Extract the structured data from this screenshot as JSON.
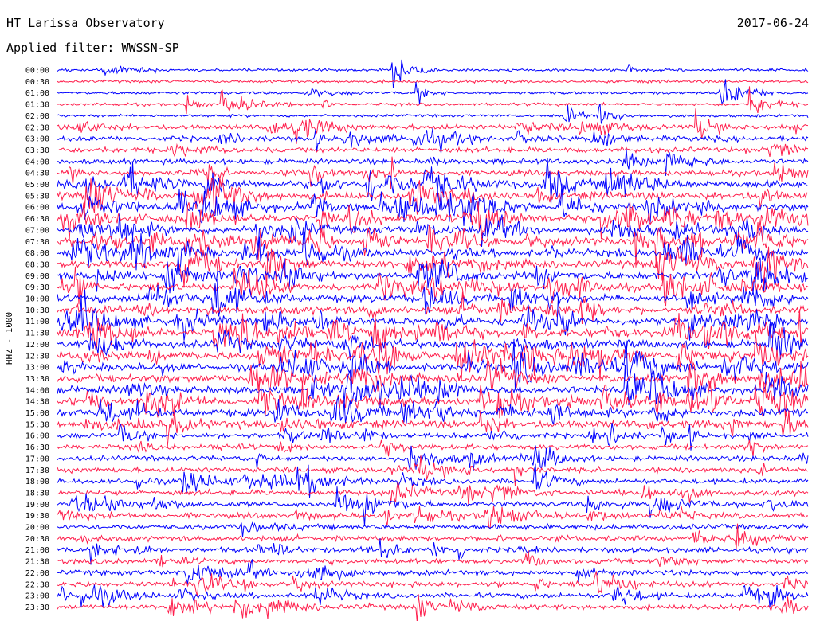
{
  "header": {
    "title": "HT Larissa Observatory",
    "date": "2017-06-24",
    "filter": "Applied filter: WWSSN-SP"
  },
  "chart_data": {
    "type": "line",
    "title": "HT Larissa Observatory",
    "date": "2017-06-24",
    "filter": "WWSSN-SP",
    "ylabel": "HHZ - 1000",
    "xlabel": "",
    "colors": {
      "odd_traces": "#0000ff",
      "even_traces": "#ff1e4c"
    },
    "series": [
      {
        "name": "00:00",
        "color": "#0000ff",
        "activity": "low"
      },
      {
        "name": "00:30",
        "color": "#ff1e4c",
        "activity": "low"
      },
      {
        "name": "01:00",
        "color": "#0000ff",
        "activity": "low"
      },
      {
        "name": "01:30",
        "color": "#ff1e4c",
        "activity": "low"
      },
      {
        "name": "02:00",
        "color": "#0000ff",
        "activity": "low"
      },
      {
        "name": "02:30",
        "color": "#ff1e4c",
        "activity": "medium"
      },
      {
        "name": "03:00",
        "color": "#0000ff",
        "activity": "medium"
      },
      {
        "name": "03:30",
        "color": "#ff1e4c",
        "activity": "medium"
      },
      {
        "name": "04:00",
        "color": "#0000ff",
        "activity": "medium"
      },
      {
        "name": "04:30",
        "color": "#ff1e4c",
        "activity": "medium"
      },
      {
        "name": "05:00",
        "color": "#0000ff",
        "activity": "high"
      },
      {
        "name": "05:30",
        "color": "#ff1e4c",
        "activity": "high"
      },
      {
        "name": "06:00",
        "color": "#0000ff",
        "activity": "high"
      },
      {
        "name": "06:30",
        "color": "#ff1e4c",
        "activity": "high"
      },
      {
        "name": "07:00",
        "color": "#0000ff",
        "activity": "high"
      },
      {
        "name": "07:30",
        "color": "#ff1e4c",
        "activity": "high"
      },
      {
        "name": "08:00",
        "color": "#0000ff",
        "activity": "high"
      },
      {
        "name": "08:30",
        "color": "#ff1e4c",
        "activity": "high"
      },
      {
        "name": "09:00",
        "color": "#0000ff",
        "activity": "high"
      },
      {
        "name": "09:30",
        "color": "#ff1e4c",
        "activity": "high"
      },
      {
        "name": "10:00",
        "color": "#0000ff",
        "activity": "high"
      },
      {
        "name": "10:30",
        "color": "#ff1e4c",
        "activity": "high"
      },
      {
        "name": "11:00",
        "color": "#0000ff",
        "activity": "high"
      },
      {
        "name": "11:30",
        "color": "#ff1e4c",
        "activity": "high"
      },
      {
        "name": "12:00",
        "color": "#0000ff",
        "activity": "high"
      },
      {
        "name": "12:30",
        "color": "#ff1e4c",
        "activity": "high"
      },
      {
        "name": "13:00",
        "color": "#0000ff",
        "activity": "high"
      },
      {
        "name": "13:30",
        "color": "#ff1e4c",
        "activity": "high"
      },
      {
        "name": "14:00",
        "color": "#0000ff",
        "activity": "high"
      },
      {
        "name": "14:30",
        "color": "#ff1e4c",
        "activity": "high"
      },
      {
        "name": "15:00",
        "color": "#0000ff",
        "activity": "high"
      },
      {
        "name": "15:30",
        "color": "#ff1e4c",
        "activity": "high"
      },
      {
        "name": "16:00",
        "color": "#0000ff",
        "activity": "medium"
      },
      {
        "name": "16:30",
        "color": "#ff1e4c",
        "activity": "medium"
      },
      {
        "name": "17:00",
        "color": "#0000ff",
        "activity": "medium"
      },
      {
        "name": "17:30",
        "color": "#ff1e4c",
        "activity": "medium"
      },
      {
        "name": "18:00",
        "color": "#0000ff",
        "activity": "medium"
      },
      {
        "name": "18:30",
        "color": "#ff1e4c",
        "activity": "medium"
      },
      {
        "name": "19:00",
        "color": "#0000ff",
        "activity": "medium"
      },
      {
        "name": "19:30",
        "color": "#ff1e4c",
        "activity": "medium"
      },
      {
        "name": "20:00",
        "color": "#0000ff",
        "activity": "medium"
      },
      {
        "name": "20:30",
        "color": "#ff1e4c",
        "activity": "medium"
      },
      {
        "name": "21:00",
        "color": "#0000ff",
        "activity": "medium"
      },
      {
        "name": "21:30",
        "color": "#ff1e4c",
        "activity": "medium"
      },
      {
        "name": "22:00",
        "color": "#0000ff",
        "activity": "medium"
      },
      {
        "name": "22:30",
        "color": "#ff1e4c",
        "activity": "medium"
      },
      {
        "name": "23:00",
        "color": "#0000ff",
        "activity": "medium"
      },
      {
        "name": "23:30",
        "color": "#ff1e4c",
        "activity": "medium"
      }
    ],
    "grid": false,
    "legend": "none"
  }
}
